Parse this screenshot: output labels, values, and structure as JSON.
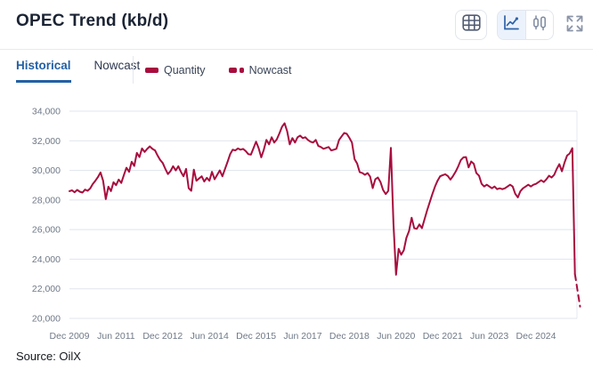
{
  "header": {
    "title": "OPEC Trend (kb/d)",
    "icons": {
      "table": "table-icon",
      "line_chart": "line-chart-icon",
      "bar_chart": "bar-chart-icon",
      "fullscreen": "fullscreen-icon"
    }
  },
  "tabs": [
    {
      "label": "Historical",
      "active": true
    },
    {
      "label": "Nowcast",
      "active": false
    }
  ],
  "legend": [
    {
      "label": "Quantity",
      "style": "solid"
    },
    {
      "label": "Nowcast",
      "style": "dashed"
    }
  ],
  "source": "Source: OilX",
  "colors": {
    "line": "#a80d3e",
    "active_tab": "#2360a5",
    "grid": "#dfe4ee",
    "axis_text": "#6f7987"
  },
  "chart_data": {
    "type": "line",
    "title": "OPEC Trend (kb/d)",
    "ylabel": "kb/d",
    "ylim": [
      20000,
      34000
    ],
    "grid": true,
    "legend_position": "top",
    "x_start": "Dec 2009",
    "x_frequency": "monthly",
    "x_tick_interval": 18,
    "x_tick_labels": [
      "Dec 2009",
      "Jun 2011",
      "Dec 2012",
      "Jun 2014",
      "Dec 2015",
      "Jun 2017",
      "Dec 2018",
      "Jun 2020",
      "Dec 2021",
      "Jun 2023",
      "Dec 2024"
    ],
    "y_ticks": [
      20000,
      22000,
      24000,
      26000,
      28000,
      30000,
      32000,
      34000
    ],
    "y_tick_labels": [
      "20,000",
      "22,000",
      "24,000",
      "26,000",
      "28,000",
      "30,000",
      "32,000",
      "34,000"
    ],
    "series": [
      {
        "name": "Quantity",
        "style": "solid",
        "color": "#a80d3e",
        "values": [
          28600,
          28650,
          28520,
          28680,
          28560,
          28500,
          28700,
          28620,
          28780,
          29080,
          29300,
          29550,
          29860,
          29300,
          28060,
          28900,
          28600,
          29200,
          29000,
          29380,
          29150,
          29680,
          30180,
          29900,
          30580,
          30300,
          31180,
          30900,
          31480,
          31250,
          31450,
          31620,
          31450,
          31350,
          31000,
          30700,
          30500,
          30100,
          29750,
          29950,
          30280,
          30000,
          30280,
          29900,
          29600,
          30100,
          28800,
          28620,
          30050,
          29300,
          29450,
          29600,
          29250,
          29500,
          29300,
          29900,
          29400,
          29700,
          30000,
          29600,
          30100,
          30580,
          31100,
          31400,
          31350,
          31480,
          31400,
          31450,
          31300,
          31100,
          31060,
          31500,
          31940,
          31500,
          30880,
          31400,
          32060,
          31760,
          32240,
          31880,
          32100,
          32500,
          32940,
          33180,
          32650,
          31760,
          32180,
          31880,
          32240,
          32350,
          32180,
          32240,
          32060,
          31940,
          31880,
          32060,
          31650,
          31580,
          31460,
          31520,
          31580,
          31350,
          31400,
          31460,
          32060,
          32300,
          32530,
          32470,
          32200,
          31880,
          30760,
          30460,
          29880,
          29820,
          29700,
          29820,
          29580,
          28800,
          29400,
          29520,
          29220,
          28680,
          28400,
          28620,
          31520,
          26400,
          22950,
          24700,
          24300,
          24600,
          25440,
          25900,
          26800,
          26100,
          26050,
          26350,
          26100,
          26700,
          27300,
          27850,
          28400,
          28900,
          29300,
          29600,
          29680,
          29740,
          29620,
          29380,
          29620,
          29920,
          30280,
          30700,
          30880,
          30900,
          30200,
          30600,
          30450,
          29820,
          29640,
          29090,
          28910,
          29030,
          28910,
          28790,
          28910,
          28730,
          28790,
          28730,
          28790,
          28910,
          29030,
          28910,
          28420,
          28180,
          28600,
          28790,
          28910,
          29030,
          28910,
          29030,
          29090,
          29210,
          29330,
          29210,
          29390,
          29640,
          29520,
          29700,
          30100,
          30420,
          29940,
          30520,
          31000,
          31140,
          31500,
          23000
        ]
      },
      {
        "name": "Nowcast",
        "style": "dashed",
        "color": "#a80d3e",
        "start_index": 195,
        "values": [
          23000,
          21900,
          20800
        ]
      }
    ]
  }
}
